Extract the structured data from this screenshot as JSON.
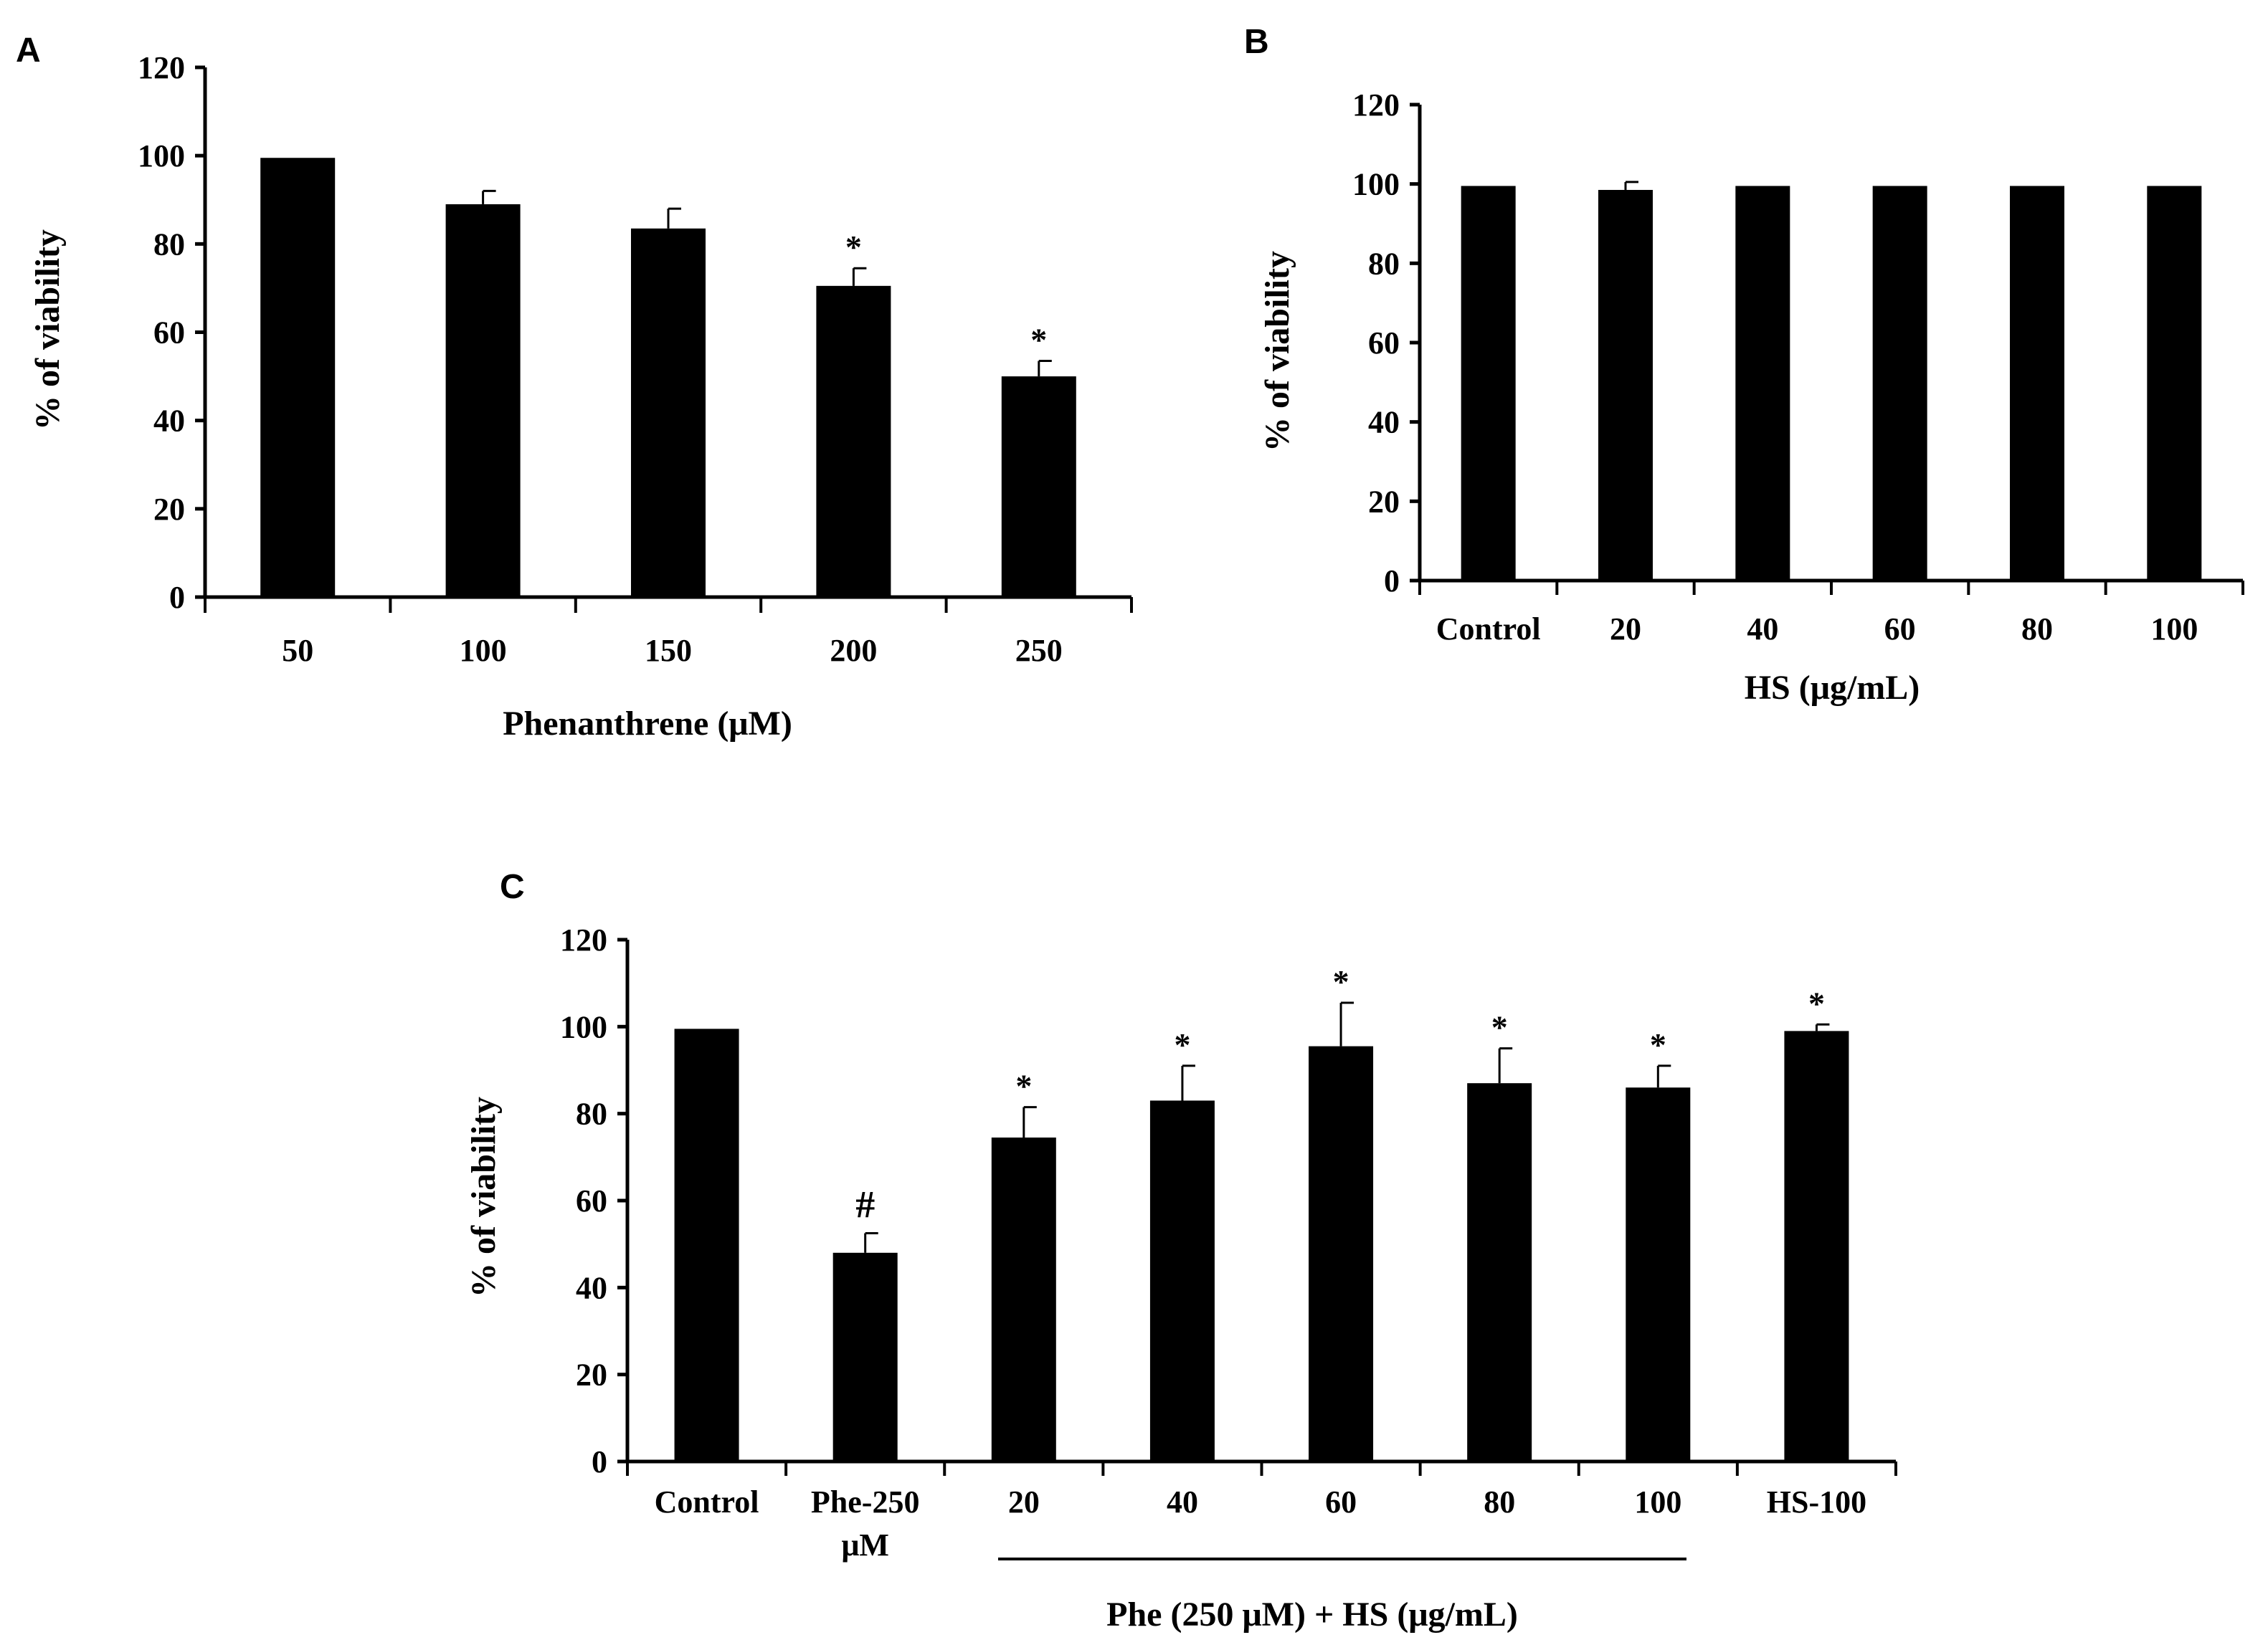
{
  "chart_data": [
    {
      "panel": "A",
      "type": "bar",
      "categories": [
        "50",
        "100",
        "150",
        "200",
        "250"
      ],
      "values": [
        99.5,
        89,
        83.5,
        70.5,
        50
      ],
      "errors": [
        0,
        3,
        4.5,
        4,
        3.5
      ],
      "annotations": [
        "",
        "",
        "",
        "*",
        "*"
      ],
      "title": "",
      "xlabel": "Phenanthrene (μM)",
      "ylabel": "% of viability",
      "ylim": [
        0,
        120
      ],
      "yticks": [
        "0",
        "20",
        "40",
        "60",
        "80",
        "100",
        "120"
      ],
      "color": "#000000"
    },
    {
      "panel": "B",
      "type": "bar",
      "categories": [
        "Control",
        "20",
        "40",
        "60",
        "80",
        "100"
      ],
      "values": [
        99.5,
        98.5,
        99.5,
        99.5,
        99.5,
        99.5
      ],
      "errors": [
        0,
        2,
        0,
        0,
        0,
        0
      ],
      "annotations": [
        "",
        "",
        "",
        "",
        "",
        ""
      ],
      "title": "",
      "xlabel": "HS (μg/mL)",
      "ylabel": "% of viability",
      "ylim": [
        0,
        120
      ],
      "yticks": [
        "0",
        "20",
        "40",
        "60",
        "80",
        "100",
        "120"
      ],
      "color": "#000000"
    },
    {
      "panel": "C",
      "type": "bar",
      "categories": [
        "Control",
        "Phe-250 μM",
        "20",
        "40",
        "60",
        "80",
        "100",
        "HS-100"
      ],
      "values": [
        99.5,
        48,
        74.5,
        83,
        95.5,
        87,
        86,
        99
      ],
      "errors": [
        0,
        4.5,
        7,
        8,
        10,
        8,
        5,
        1.5
      ],
      "annotations": [
        "",
        "#",
        "*",
        "*",
        "*",
        "*",
        "*",
        "*"
      ],
      "title": "",
      "xlabel": "Phe (250 μM) + HS (μg/mL)",
      "ylabel": "% of viability",
      "ylim": [
        0,
        120
      ],
      "yticks": [
        "0",
        "20",
        "40",
        "60",
        "80",
        "100",
        "120"
      ],
      "color": "#000000"
    }
  ]
}
